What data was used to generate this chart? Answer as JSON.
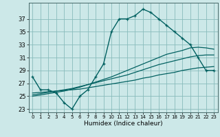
{
  "xlabel": "Humidex (Indice chaleur)",
  "background_color": "#cce8e8",
  "grid_color": "#88bbbb",
  "line_color": "#006060",
  "hours": [
    0,
    1,
    2,
    3,
    4,
    5,
    6,
    7,
    8,
    9,
    10,
    11,
    12,
    13,
    14,
    15,
    16,
    17,
    18,
    19,
    20,
    21,
    22,
    23
  ],
  "line_main": [
    28,
    26,
    26,
    25.5,
    24,
    23,
    25,
    26,
    28,
    30,
    35,
    37,
    37,
    37.5,
    38.5,
    38,
    37,
    36,
    35,
    34,
    33,
    31,
    29,
    29
  ],
  "line_s1": [
    25.5,
    25.6,
    25.7,
    25.8,
    25.9,
    26.0,
    26.1,
    26.3,
    26.5,
    26.7,
    26.9,
    27.1,
    27.3,
    27.5,
    27.8,
    28.0,
    28.3,
    28.5,
    28.7,
    29.0,
    29.2,
    29.4,
    29.5,
    29.6
  ],
  "line_s2": [
    25.2,
    25.4,
    25.6,
    25.8,
    26.0,
    26.2,
    26.5,
    26.8,
    27.1,
    27.4,
    27.7,
    28.0,
    28.3,
    28.7,
    29.1,
    29.5,
    29.9,
    30.2,
    30.5,
    30.8,
    31.1,
    31.3,
    31.4,
    31.4
  ],
  "line_s3": [
    25.0,
    25.2,
    25.4,
    25.6,
    25.8,
    26.1,
    26.4,
    26.8,
    27.2,
    27.6,
    28.0,
    28.5,
    29.0,
    29.5,
    30.0,
    30.5,
    31.0,
    31.5,
    31.8,
    32.1,
    32.5,
    32.6,
    32.5,
    32.3
  ],
  "ylim": [
    22.5,
    39.5
  ],
  "yticks": [
    23,
    25,
    27,
    29,
    31,
    33,
    35,
    37
  ],
  "xticks": [
    0,
    1,
    2,
    3,
    4,
    5,
    6,
    7,
    8,
    9,
    10,
    11,
    12,
    13,
    14,
    15,
    16,
    17,
    18,
    19,
    20,
    21,
    22,
    23
  ],
  "xticklabels": [
    "0",
    "1",
    "2",
    "3",
    "4",
    "5",
    "6",
    "7",
    "8",
    "9",
    "10",
    "11",
    "12",
    "13",
    "14",
    "15",
    "16",
    "17",
    "18",
    "19",
    "20",
    "21",
    "22",
    "23"
  ]
}
